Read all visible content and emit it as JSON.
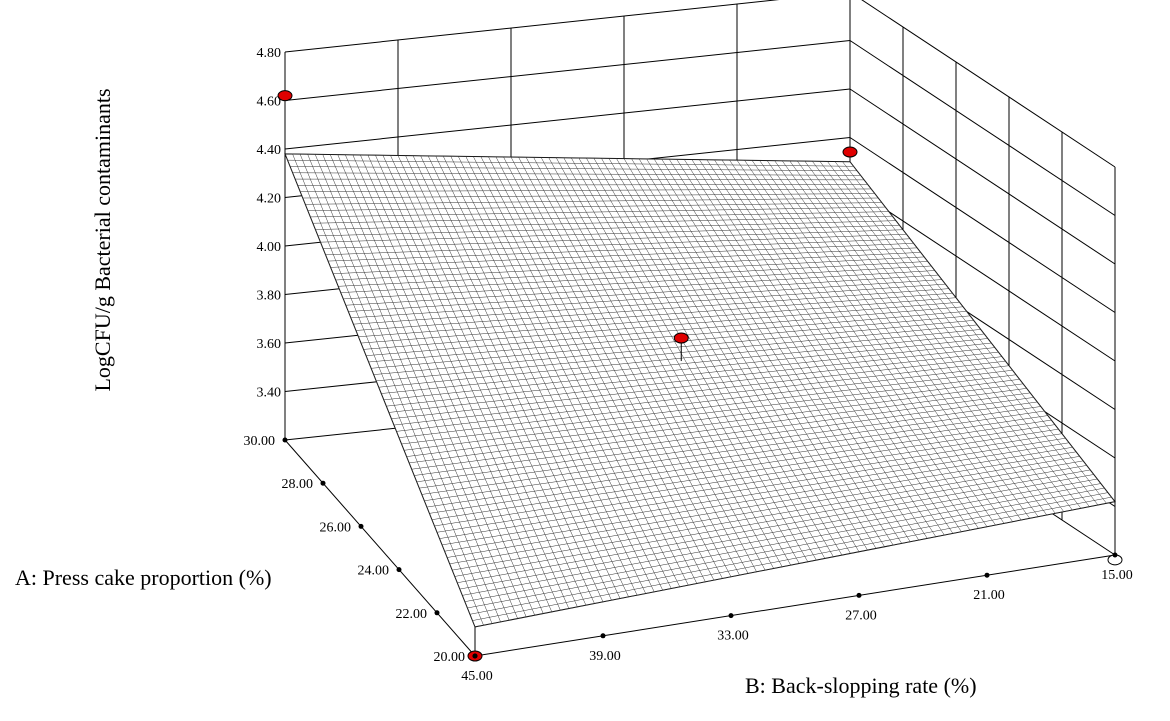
{
  "chart_data": {
    "type": "surface3d",
    "title": "",
    "z_axis": {
      "label": "LogCFU/g Bacterial contaminants",
      "range": [
        3.2,
        4.8
      ],
      "ticks": [
        "3.40",
        "3.60",
        "3.80",
        "4.00",
        "4.20",
        "4.40",
        "4.60",
        "4.80"
      ]
    },
    "a_axis": {
      "label": "A: Press cake proportion (%)",
      "range": [
        20,
        30
      ],
      "ticks": [
        "20.00",
        "22.00",
        "24.00",
        "26.00",
        "28.00",
        "30.00"
      ]
    },
    "b_axis": {
      "label": "B: Back-slopping rate (%)",
      "range": [
        15,
        45
      ],
      "ticks": [
        "45.00",
        "39.00",
        "33.00",
        "27.00",
        "21.00",
        "15.00"
      ]
    },
    "surface_corners": [
      {
        "A": 30,
        "B": 45,
        "z": 4.38
      },
      {
        "A": 20,
        "B": 45,
        "z": 3.32
      },
      {
        "A": 30,
        "B": 15,
        "z": 4.1
      },
      {
        "A": 20,
        "B": 15,
        "z": 3.42
      }
    ],
    "design_points": [
      {
        "A": 30,
        "B": 45,
        "z": 4.62,
        "color": "#e00000"
      },
      {
        "A": 20,
        "B": 45,
        "z": 3.2,
        "color": "#e00000"
      },
      {
        "A": 25,
        "B": 30,
        "z": 3.9,
        "color": "#e00000"
      },
      {
        "A": 30,
        "B": 15,
        "z": 4.14,
        "color": "#e00000"
      },
      {
        "A": 20,
        "B": 15,
        "z": 3.18,
        "color": "#ffffff"
      }
    ],
    "grid": true
  }
}
